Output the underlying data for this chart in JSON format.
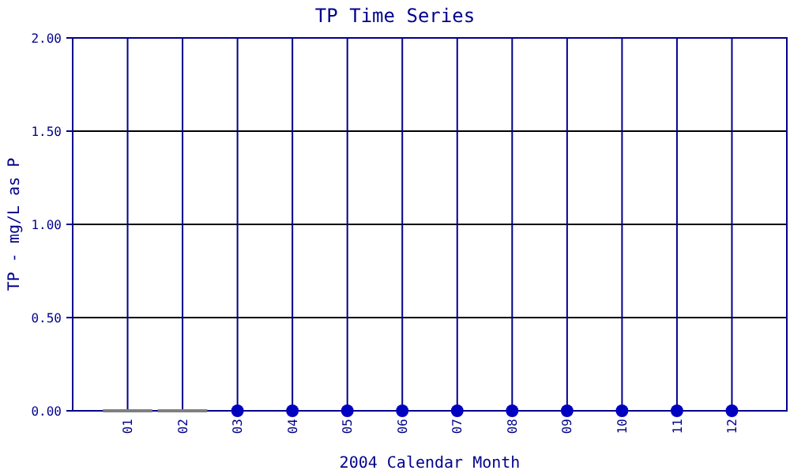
{
  "chart_data": {
    "type": "scatter",
    "title": "TP Time Series",
    "xlabel": "2004 Calendar Month",
    "ylabel": "TP - mg/L as P",
    "categories": [
      "01",
      "02",
      "03",
      "04",
      "05",
      "06",
      "07",
      "08",
      "09",
      "10",
      "11",
      "12"
    ],
    "series": [
      {
        "type": "bar",
        "color": "#808080",
        "values": [
          0,
          0,
          null,
          null,
          null,
          null,
          null,
          null,
          null,
          null,
          null,
          null
        ]
      },
      {
        "color": "#0000c0",
        "values": [
          null,
          null,
          0,
          0,
          0,
          0,
          0,
          0,
          0,
          0,
          0,
          0
        ]
      }
    ],
    "ylim": [
      0,
      2
    ],
    "yticks": [
      {
        "value": 0,
        "label": "0.00"
      },
      {
        "value": 0.5,
        "label": "0.50"
      },
      {
        "value": 1,
        "label": "1.00"
      },
      {
        "value": 1.5,
        "label": "1.50"
      },
      {
        "value": 2,
        "label": "2.00"
      }
    ],
    "grid": true,
    "marker": "circle"
  }
}
